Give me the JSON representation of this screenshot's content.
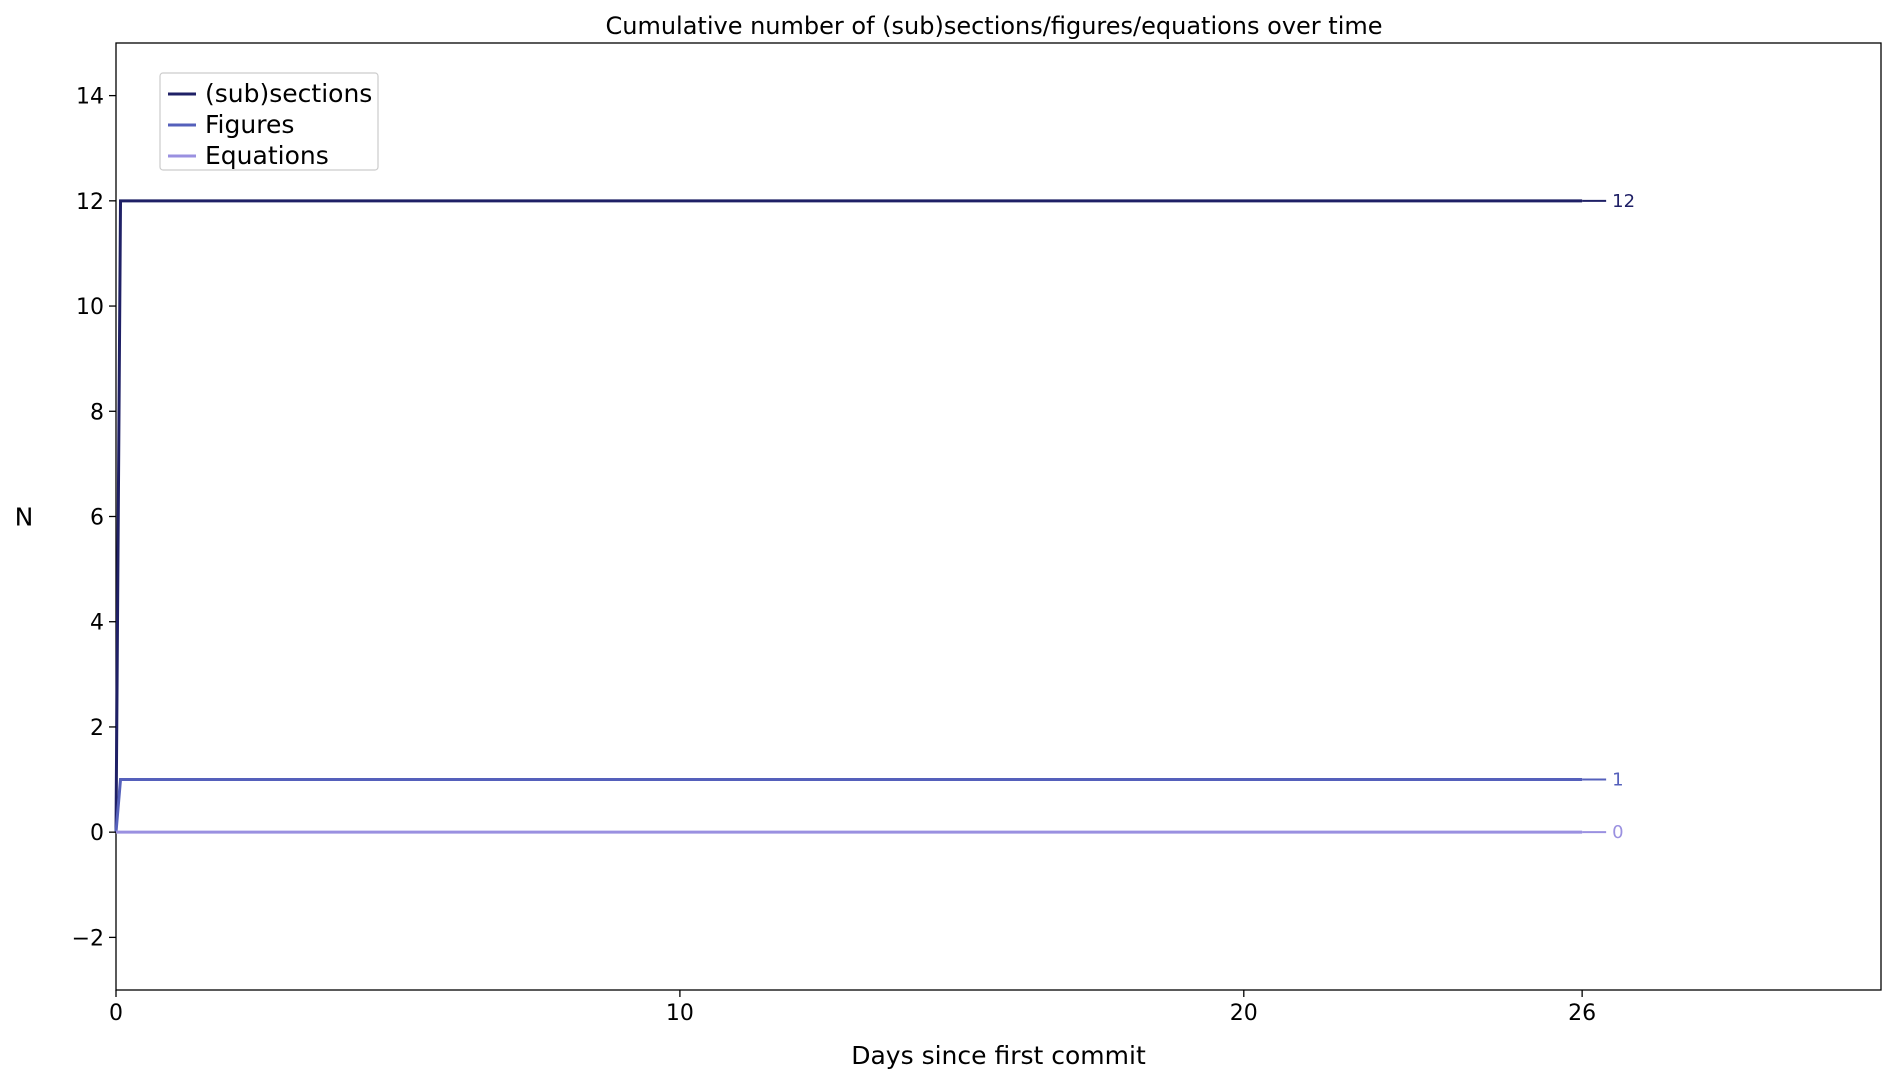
{
  "chart_data": {
    "type": "line",
    "title": "Cumulative number of (sub)sections/figures/equations over time",
    "xlabel": "Days since first commit",
    "ylabel": "N",
    "xlim": [
      0,
      31.3
    ],
    "ylim": [
      -3,
      15
    ],
    "xticks": [
      0,
      10,
      20,
      26
    ],
    "yticks": [
      -2,
      0,
      2,
      4,
      6,
      8,
      10,
      12,
      14
    ],
    "ytick_labels": [
      "−2",
      "0",
      "2",
      "4",
      "6",
      "8",
      "10",
      "12",
      "14"
    ],
    "grid": false,
    "legend_position": "top-left",
    "series": [
      {
        "name": "(sub)sections",
        "color": "#1f2066",
        "x": [
          0,
          0.08,
          26
        ],
        "y": [
          0,
          12,
          12
        ],
        "end_value": 12,
        "end_label": "12"
      },
      {
        "name": "Figures",
        "color": "#5560bb",
        "x": [
          0,
          0.08,
          26
        ],
        "y": [
          0,
          1,
          1
        ],
        "end_value": 1,
        "end_label": "1"
      },
      {
        "name": "Equations",
        "color": "#9a90e0",
        "x": [
          0,
          0.08,
          26
        ],
        "y": [
          0,
          0,
          0
        ],
        "end_value": 0,
        "end_label": "0"
      }
    ]
  }
}
